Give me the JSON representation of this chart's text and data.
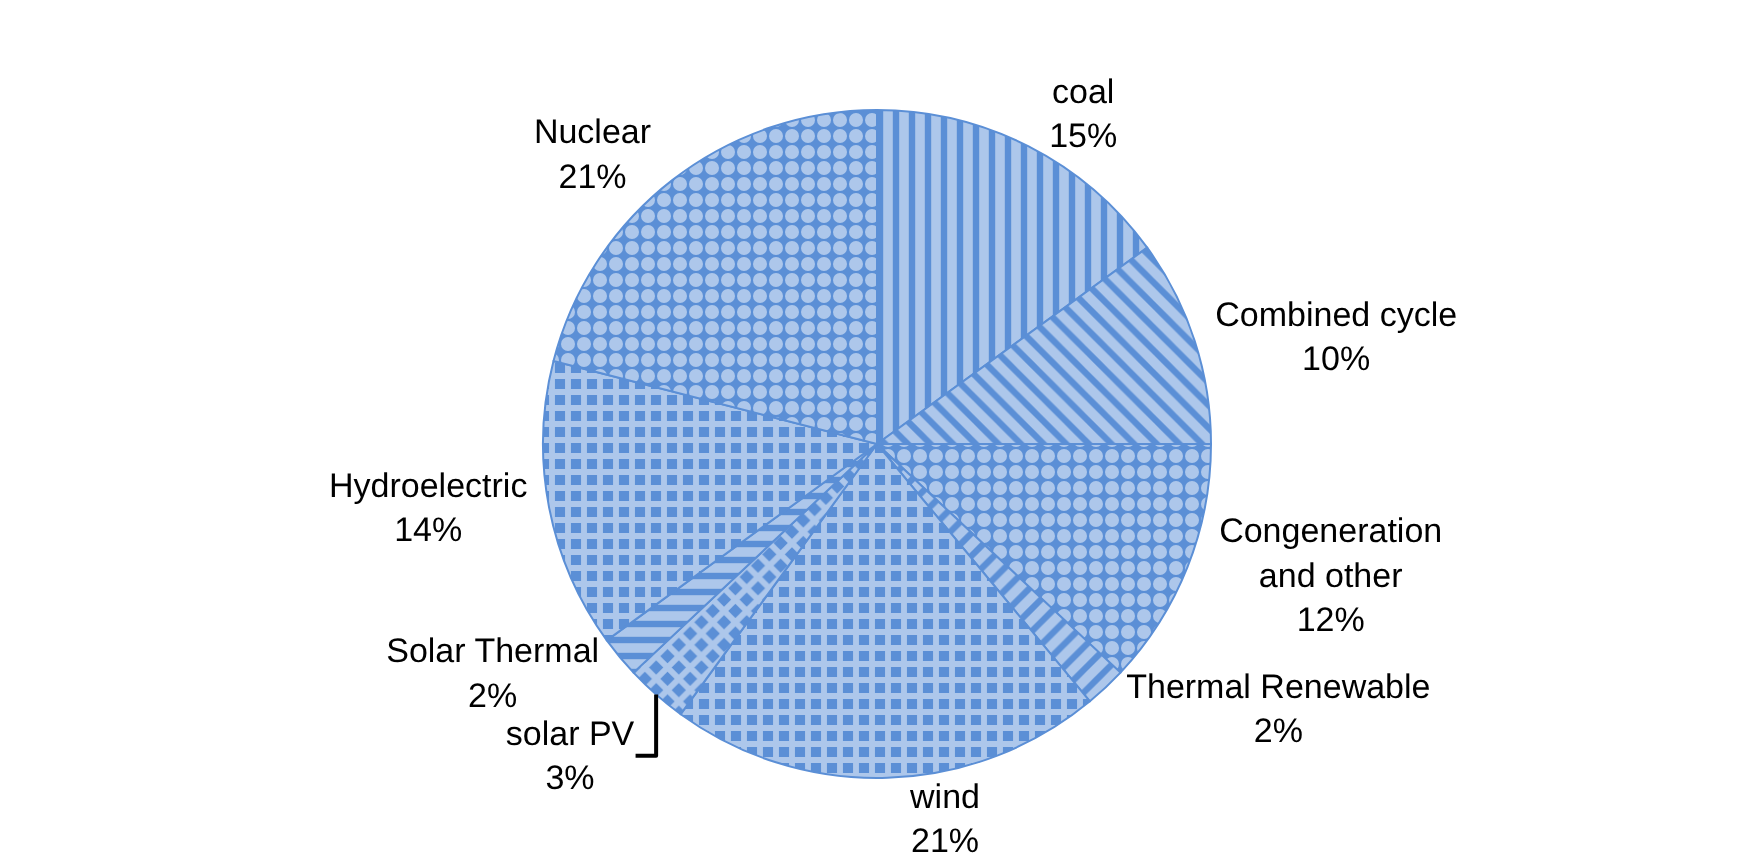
{
  "chart_data": {
    "type": "pie",
    "categories": [
      "coal",
      "Combined cycle",
      "Congeneration and other",
      "Thermal Renewable",
      "wind",
      "solar PV",
      "Solar Thermal",
      "Hydroelectric",
      "Nuclear"
    ],
    "values": [
      15,
      10,
      12,
      2,
      21,
      3,
      2,
      14,
      21
    ],
    "value_labels": [
      "15%",
      "10%",
      "12%",
      "2%",
      "21%",
      "3%",
      "2%",
      "14%",
      "21%"
    ],
    "colors": [
      "#5b8fd6",
      "#5b8fd6",
      "#5b8fd6",
      "#5b8fd6",
      "#5b8fd6",
      "#5b8fd6",
      "#5b8fd6",
      "#5b8fd6",
      "#5b8fd6"
    ],
    "legend": false
  }
}
